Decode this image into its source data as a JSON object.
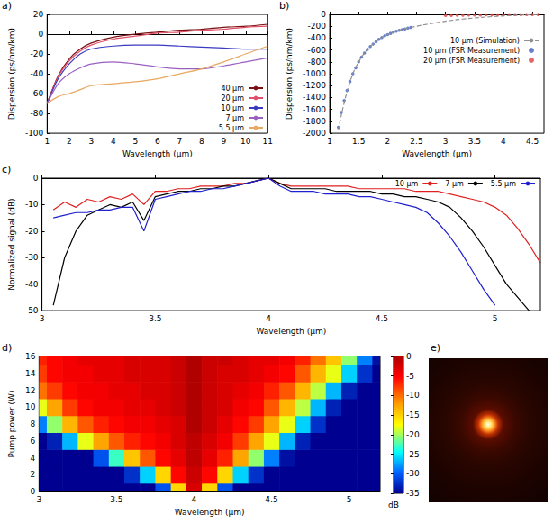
{
  "chart_data": [
    {
      "type": "line",
      "label": "a)",
      "xlabel": "Wavelength (µm)",
      "ylabel": "Dispersion (ps/nm/km)",
      "x": [
        1,
        1.5,
        2,
        2.5,
        3,
        4,
        5,
        6,
        7,
        8,
        9,
        10,
        11
      ],
      "series": [
        {
          "name": "40 µm",
          "color": "#7a1010",
          "values": [
            -70,
            -42,
            -25,
            -15,
            -9,
            -3,
            0,
            2,
            4,
            5,
            7,
            8,
            10
          ]
        },
        {
          "name": "20 µm",
          "color": "#e0506a",
          "values": [
            -70,
            -43,
            -27,
            -17,
            -11,
            -5,
            -2,
            1,
            2,
            4,
            5,
            7,
            8
          ]
        },
        {
          "name": "10 µm",
          "color": "#3a3ac0",
          "values": [
            -70,
            -45,
            -30,
            -20,
            -15,
            -12,
            -11,
            -11,
            -12,
            -13,
            -14,
            -15,
            -15
          ]
        },
        {
          "name": "7 µm",
          "color": "#9a60c0",
          "values": [
            -70,
            -50,
            -40,
            -34,
            -30,
            -28,
            -30,
            -33,
            -35,
            -35,
            -32,
            -28,
            -24
          ]
        },
        {
          "name": "5.5 µm",
          "color": "#e8a860",
          "values": [
            -70,
            -63,
            -60,
            -56,
            -52,
            -50,
            -48,
            -45,
            -40,
            -35,
            -28,
            -20,
            -12
          ]
        }
      ],
      "xlim": [
        1,
        11
      ],
      "xticks": [
        1,
        2,
        3,
        4,
        5,
        6,
        7,
        8,
        9,
        10,
        11
      ],
      "ylim": [
        -100,
        20
      ],
      "yticks": [
        -100,
        -80,
        -60,
        -40,
        -20,
        0,
        20
      ],
      "legend": "lower right",
      "grid": false
    },
    {
      "type": "line",
      "label": "b)",
      "xlabel": "Wavelength (µm)",
      "ylabel": "Dispersion (ps/nm/km)",
      "series": [
        {
          "name": "10 µm (Simulation)",
          "color": "#909090",
          "type": "line",
          "line_style": "dashed",
          "x": [
            1.15,
            1.2,
            1.3,
            1.4,
            1.5,
            1.6,
            1.7,
            1.8,
            1.9,
            2.0,
            2.2,
            2.4,
            2.6,
            2.8,
            3.0,
            3.2,
            3.4,
            3.6,
            3.8,
            4.0,
            4.2,
            4.4,
            4.6
          ],
          "values": [
            -1950,
            -1700,
            -1300,
            -1000,
            -800,
            -650,
            -540,
            -460,
            -390,
            -340,
            -270,
            -220,
            -180,
            -145,
            -115,
            -90,
            -70,
            -52,
            -38,
            -26,
            -16,
            -8,
            -2
          ]
        },
        {
          "name": "10 µm (FSR Measurement)",
          "color": "#4060c0",
          "type": "scatter",
          "marker": "circle",
          "x": [
            1.15,
            1.2,
            1.25,
            1.3,
            1.35,
            1.4,
            1.45,
            1.5,
            1.55,
            1.6,
            1.65,
            1.7,
            1.75,
            1.8,
            1.85,
            1.9,
            1.95,
            2.0,
            2.05,
            2.1,
            2.15,
            2.2,
            2.25,
            2.3,
            2.35,
            2.4
          ],
          "values": [
            -1900,
            -1650,
            -1450,
            -1280,
            -1130,
            -1000,
            -900,
            -800,
            -720,
            -650,
            -590,
            -540,
            -500,
            -460,
            -420,
            -390,
            -360,
            -340,
            -320,
            -300,
            -285,
            -270,
            -258,
            -245,
            -232,
            -220
          ]
        },
        {
          "name": "20 µm (FSR Measurement)",
          "color": "#e04040",
          "type": "scatter",
          "marker": "circle",
          "x": [
            3.0,
            3.1,
            3.2,
            3.3,
            3.4,
            3.5,
            3.6,
            3.7,
            3.8,
            3.9,
            4.0,
            4.1,
            4.2,
            4.3,
            4.4,
            4.5,
            4.6
          ],
          "values": [
            -20,
            -18,
            -16,
            -15,
            -13,
            -12,
            -10,
            -9,
            -8,
            -7,
            -6,
            -5,
            -4,
            -4,
            -3,
            -2,
            -2
          ]
        }
      ],
      "xlim": [
        1,
        4.7
      ],
      "xticks": [
        1,
        1.5,
        2,
        2.5,
        3,
        3.5,
        4,
        4.5
      ],
      "ylim": [
        -2000,
        0
      ],
      "yticks": [
        -2000,
        -1800,
        -1600,
        -1400,
        -1200,
        -1000,
        -800,
        -600,
        -400,
        -200,
        0
      ],
      "legend": "upper right",
      "grid": false
    },
    {
      "type": "line",
      "label": "c)",
      "xlabel": "Wavelength (µm)",
      "ylabel": "Normalized signal (dB)",
      "x": [
        3.05,
        3.1,
        3.15,
        3.2,
        3.25,
        3.3,
        3.35,
        3.4,
        3.45,
        3.5,
        3.55,
        3.6,
        3.65,
        3.7,
        3.75,
        3.8,
        3.85,
        3.9,
        3.95,
        4,
        4.05,
        4.1,
        4.15,
        4.2,
        4.25,
        4.3,
        4.35,
        4.4,
        4.45,
        4.5,
        4.55,
        4.6,
        4.65,
        4.7,
        4.75,
        4.8,
        4.85,
        4.9,
        4.95,
        5,
        5.05,
        5.1,
        5.15,
        5.2
      ],
      "series": [
        {
          "name": "10 µm",
          "color": "#e02020",
          "values": [
            -12,
            -9,
            -11,
            -8,
            -9,
            -7,
            -8,
            -6,
            -10,
            -5,
            -5,
            -4,
            -4,
            -3,
            -3,
            -3,
            -2,
            -2,
            -1,
            0,
            -2,
            -3,
            -3,
            -3,
            -3,
            -3,
            -3,
            -4,
            -4,
            -4,
            -4,
            -4,
            -5,
            -5,
            -5,
            -6,
            -7,
            -8,
            -9,
            -11,
            -14,
            -19,
            -25,
            -32
          ]
        },
        {
          "name": "7 µm",
          "color": "#000000",
          "values": [
            -48,
            -30,
            -20,
            -14,
            -12,
            -10,
            -11,
            -9,
            -16,
            -7,
            -6,
            -5,
            -5,
            -4,
            -4,
            -3,
            -3,
            -2,
            -1,
            0,
            -2,
            -4,
            -4,
            -4,
            -4,
            -5,
            -5,
            -5,
            -5,
            -6,
            -6,
            -7,
            -7,
            -8,
            -9,
            -11,
            -15,
            -20,
            -26,
            -33,
            -40,
            -45,
            -50,
            null
          ]
        },
        {
          "name": "5.5 µm",
          "color": "#2020d0",
          "values": [
            -15,
            -14,
            -13,
            -13,
            -12,
            -12,
            -11,
            -11,
            -20,
            -8,
            -7,
            -6,
            -5,
            -5,
            -4,
            -4,
            -3,
            -2,
            -1,
            0,
            -3,
            -5,
            -5,
            -5,
            -6,
            -6,
            -6,
            -7,
            -7,
            -8,
            -9,
            -10,
            -11,
            -13,
            -17,
            -22,
            -28,
            -35,
            -42,
            -48,
            null,
            null,
            null,
            null
          ]
        }
      ],
      "xlim": [
        3,
        5.2
      ],
      "xticks": [
        3,
        3.5,
        4,
        4.5,
        5
      ],
      "ylim": [
        -50,
        0
      ],
      "yticks": [
        -50,
        -40,
        -30,
        -20,
        -10,
        0
      ],
      "legend": "upper right",
      "grid": false
    },
    {
      "type": "heatmap",
      "label": "d)",
      "xlabel": "Wavelength (µm)",
      "ylabel": "Pump power (W)",
      "x": [
        3.0,
        3.1,
        3.2,
        3.3,
        3.4,
        3.5,
        3.6,
        3.7,
        3.8,
        3.9,
        4.0,
        4.1,
        4.2,
        4.3,
        4.4,
        4.5,
        4.6,
        4.7,
        4.8,
        4.9,
        5.0,
        5.1,
        5.2
      ],
      "y": [
        0,
        2,
        4,
        6,
        8,
        10,
        12,
        14,
        16
      ],
      "values": [
        [
          -35,
          -35,
          -35,
          -35,
          -35,
          -35,
          -35,
          -35,
          -30,
          -15,
          -3,
          -15,
          -30,
          -35,
          -35,
          -35,
          -35,
          -35,
          -35,
          -35,
          -35,
          -35,
          -35
        ],
        [
          -35,
          -35,
          -35,
          -35,
          -35,
          -35,
          -32,
          -25,
          -15,
          -6,
          -2,
          -6,
          -15,
          -25,
          -32,
          -35,
          -35,
          -35,
          -35,
          -35,
          -35,
          -35,
          -35
        ],
        [
          -35,
          -35,
          -35,
          -35,
          -30,
          -22,
          -14,
          -9,
          -6,
          -4,
          -1,
          -4,
          -7,
          -12,
          -20,
          -28,
          -34,
          -35,
          -35,
          -35,
          -35,
          -35,
          -35
        ],
        [
          -35,
          -33,
          -26,
          -18,
          -12,
          -9,
          -7,
          -6,
          -5,
          -3,
          -1,
          -3,
          -5,
          -8,
          -12,
          -18,
          -26,
          -33,
          -35,
          -35,
          -35,
          -35,
          -35
        ],
        [
          -28,
          -20,
          -13,
          -9,
          -7,
          -6,
          -5,
          -5,
          -4,
          -3,
          0,
          -2,
          -4,
          -6,
          -8,
          -12,
          -18,
          -25,
          -32,
          -35,
          -35,
          -35,
          -35
        ],
        [
          -18,
          -12,
          -8,
          -6,
          -5,
          -5,
          -4,
          -4,
          -3,
          -2,
          0,
          -2,
          -3,
          -5,
          -6,
          -9,
          -13,
          -19,
          -26,
          -33,
          -35,
          -35,
          -35
        ],
        [
          -10,
          -8,
          -6,
          -5,
          -5,
          -4,
          -4,
          -3,
          -3,
          -2,
          0,
          -2,
          -3,
          -4,
          -5,
          -7,
          -9,
          -13,
          -19,
          -26,
          -33,
          -35,
          -35
        ],
        [
          -8,
          -6,
          -5,
          -5,
          -4,
          -4,
          -3,
          -3,
          -3,
          -2,
          0,
          -2,
          -3,
          -3,
          -4,
          -5,
          -6,
          -9,
          -13,
          -18,
          -25,
          -32,
          -35
        ],
        [
          -7,
          -6,
          -5,
          -4,
          -4,
          -4,
          -3,
          -3,
          -3,
          -2,
          0,
          -2,
          -2,
          -3,
          -4,
          -4,
          -5,
          -7,
          -10,
          -14,
          -20,
          -28,
          -34
        ]
      ],
      "xlim": [
        3,
        5.2
      ],
      "xticks": [
        3,
        3.5,
        4,
        4.5,
        5
      ],
      "ylim": [
        0,
        16
      ],
      "yticks": [
        0,
        2,
        4,
        6,
        8,
        10,
        12,
        14,
        16
      ],
      "colorbar": {
        "range": [
          -35,
          0
        ],
        "ticks": [
          -35,
          -30,
          -25,
          -20,
          -15,
          -10,
          -5,
          0
        ],
        "label": "dB"
      },
      "grid": false
    },
    {
      "type": "image",
      "label": "e)"
    }
  ]
}
